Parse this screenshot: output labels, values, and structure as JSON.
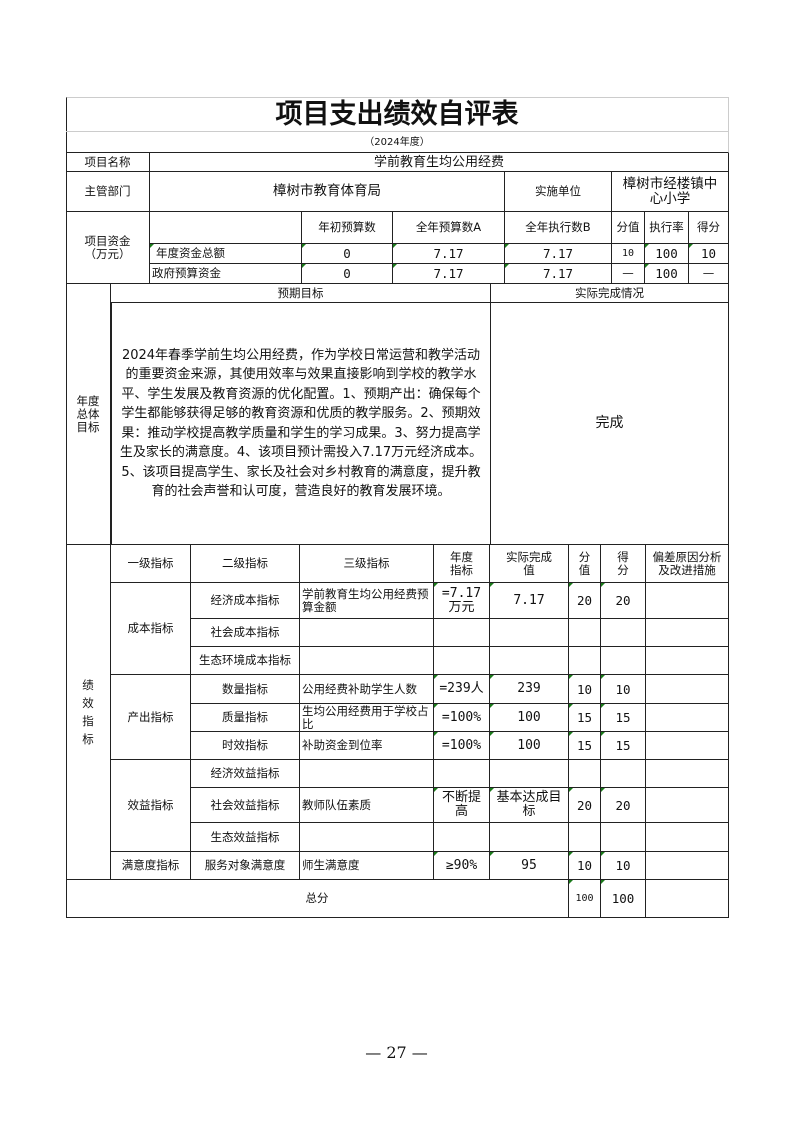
{
  "title": "项目支出绩效自评表",
  "year": "（2024年度）",
  "project": {
    "name_label": "项目名称",
    "name": "学前教育生均公用经费"
  },
  "dept": {
    "label": "主管部门",
    "value": "樟树市教育体育局",
    "impl_label": "实施单位",
    "impl_value": "樟树市经楼镇中心小学"
  },
  "funds": {
    "label": "项目资金（万元）",
    "headers": [
      "年初预算数",
      "全年预算数A",
      "全年执行数B",
      "分值",
      "执行率",
      "得分"
    ],
    "rows": [
      {
        "name": "年度资金总额",
        "initial": "0",
        "annual": "7.17",
        "executed": "7.17",
        "score_value": "10",
        "rate": "100",
        "score": "10"
      },
      {
        "name": "政府预算资金",
        "initial": "0",
        "annual": "7.17",
        "executed": "7.17",
        "score_value": "—",
        "rate": "100",
        "score": "—"
      }
    ]
  },
  "goals": {
    "label": "年度总体目标",
    "expected_header": "预期目标",
    "actual_header": "实际完成情况",
    "expected": "2024年春季学前生均公用经费，作为学校日常运营和教学活动的重要资金来源，其使用效率与效果直接影响到学校的教学水平、学生发展及教育资源的优化配置。1、预期产出：确保每个学生都能够获得足够的教育资源和优质的教学服务。2、预期效果：推动学校提高教学质量和学生的学习成果。3、努力提高学生及家长的满意度。4、该项目预计需投入7.17万元经济成本。5、该项目提高学生、家长及社会对乡村教育的满意度，提升教育的社会声誉和认可度，营造良好的教育发展环境。",
    "actual": "完成"
  },
  "perf": {
    "label": "绩效指标",
    "headers": [
      "一级指标",
      "二级指标",
      "三级指标",
      "年度指标",
      "实际完成值",
      "分值",
      "得分",
      "偏差原因分析及改进措施"
    ],
    "level1": [
      "成本指标",
      "产出指标",
      "效益指标",
      "满意度指标"
    ],
    "rows": [
      {
        "l2": "经济成本指标",
        "l3": "学前教育生均公用经费预算金额",
        "target": "=7.17万元",
        "actual": "7.17",
        "value": "20",
        "score": "20"
      },
      {
        "l2": "社会成本指标",
        "l3": "",
        "target": "",
        "actual": "",
        "value": "",
        "score": ""
      },
      {
        "l2": "生态环境成本指标",
        "l3": "",
        "target": "",
        "actual": "",
        "value": "",
        "score": ""
      },
      {
        "l2": "数量指标",
        "l3": "公用经费补助学生人数",
        "target": "=239人",
        "actual": "239",
        "value": "10",
        "score": "10"
      },
      {
        "l2": "质量指标",
        "l3": "生均公用经费用于学校占比",
        "target": "=100%",
        "actual": "100",
        "value": "15",
        "score": "15"
      },
      {
        "l2": "时效指标",
        "l3": "补助资金到位率",
        "target": "=100%",
        "actual": "100",
        "value": "15",
        "score": "15"
      },
      {
        "l2": "经济效益指标",
        "l3": "",
        "target": "",
        "actual": "",
        "value": "",
        "score": ""
      },
      {
        "l2": "社会效益指标",
        "l3": "教师队伍素质",
        "target": "不断提高",
        "actual": "基本达成目标",
        "value": "20",
        "score": "20"
      },
      {
        "l2": "生态效益指标",
        "l3": "",
        "target": "",
        "actual": "",
        "value": "",
        "score": ""
      },
      {
        "l2": "服务对象满意度",
        "l3": "师生满意度",
        "target": "≥90%",
        "actual": "95",
        "value": "10",
        "score": "10"
      }
    ],
    "total_label": "总分",
    "total_value": "100",
    "total_score": "100"
  },
  "page_number": "— 27 —"
}
